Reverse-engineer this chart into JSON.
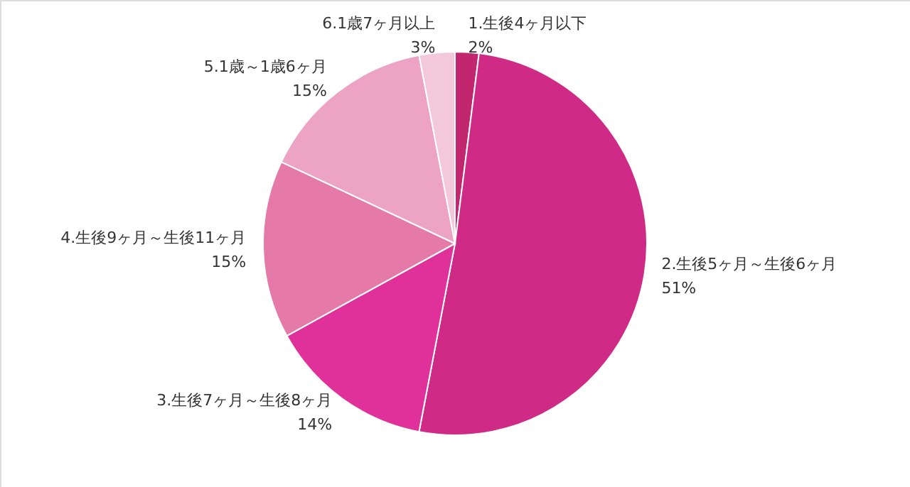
{
  "chart_data": {
    "type": "pie",
    "categories": [
      "1.生後4ヶ月以下",
      "2.生後5ヶ月～生後6ヶ月",
      "3.生後7ヶ月～生後8ヶ月",
      "4.生後9ヶ月～生後11ヶ月",
      "5.1歳～1歳6ヶ月",
      "6.1歳7ヶ月以上"
    ],
    "values": [
      2,
      51,
      14,
      15,
      15,
      3
    ],
    "colors": [
      "#c2266f",
      "#d02a87",
      "#e0309a",
      "#e57aa9",
      "#eca3c4",
      "#f3c8da"
    ],
    "value_labels": [
      "2%",
      "51%",
      "14%",
      "15%",
      "15%",
      "3%"
    ]
  }
}
